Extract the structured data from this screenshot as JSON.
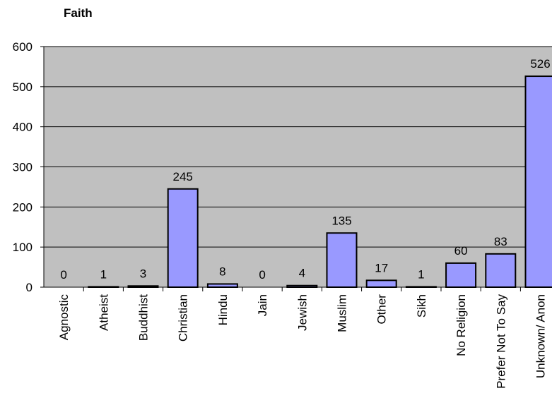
{
  "chart_data": {
    "type": "bar",
    "title": "Faith",
    "xlabel": "",
    "ylabel": "",
    "categories": [
      "Agnostic",
      "Atheist",
      "Buddhist",
      "Christian",
      "Hindu",
      "Jain",
      "Jewish",
      "Muslim",
      "Other",
      "Sikh",
      "No Religion",
      "Prefer Not To Say",
      "Unknown/ Anon"
    ],
    "values": [
      0,
      1,
      3,
      245,
      8,
      0,
      4,
      135,
      17,
      1,
      60,
      83,
      526
    ],
    "data_labels": [
      "0",
      "1",
      "3",
      "245",
      "8",
      "0",
      "4",
      "135",
      "17",
      "1",
      "60",
      "83",
      "526"
    ],
    "ylim": [
      0,
      600
    ],
    "yticks": [
      0,
      100,
      200,
      300,
      400,
      500,
      600
    ],
    "grid": true,
    "legend": "none",
    "colors": {
      "plot_background": "#c0c0c0",
      "bar_fill": "#9999ff",
      "bar_stroke": "#000000",
      "gridline": "#000000"
    }
  }
}
